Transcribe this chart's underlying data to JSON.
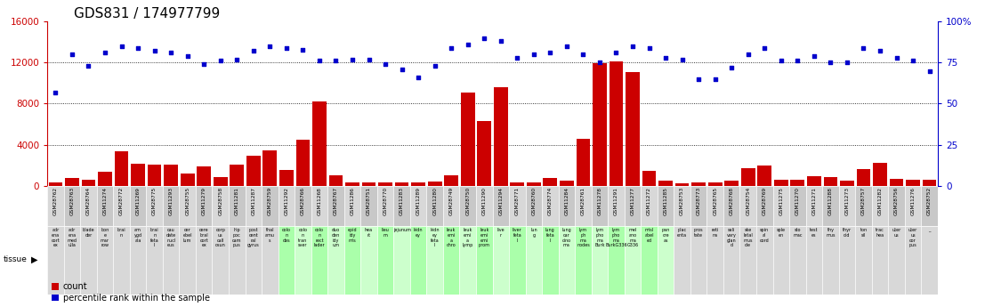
{
  "title": "GDS831 / 174977799",
  "samples": [
    "GSM28762",
    "GSM28763",
    "GSM28764",
    "GSM11274",
    "GSM28772",
    "GSM11269",
    "GSM28775",
    "GSM11293",
    "GSM28755",
    "GSM11279",
    "GSM28758",
    "GSM11281",
    "GSM11287",
    "GSM28759",
    "GSM11292",
    "GSM28766",
    "GSM11268",
    "GSM28767",
    "GSM11286",
    "GSM28751",
    "GSM28770",
    "GSM11283",
    "GSM11289",
    "GSM11280",
    "GSM28749",
    "GSM28750",
    "GSM11290",
    "GSM11294",
    "GSM28771",
    "GSM28760",
    "GSM28774",
    "GSM11284",
    "GSM28761",
    "GSM11278",
    "GSM11291",
    "GSM11277",
    "GSM11272",
    "GSM11285",
    "GSM28753",
    "GSM28773",
    "GSM28765",
    "GSM28768",
    "GSM28754",
    "GSM28769",
    "GSM11275",
    "GSM11270",
    "GSM11271",
    "GSM11288",
    "GSM11273",
    "GSM28757",
    "GSM11282",
    "GSM28756",
    "GSM11276",
    "GSM28752"
  ],
  "tissues": [
    "adr\nena\ncort\nex",
    "adr\nena\nmed\nulla",
    "blade\nder",
    "bon\ne\nmar\nrow",
    "brai\nn",
    "am\nygd\nala",
    "brai\nn\nfeta\nl",
    "cau\ndate\nnucl\neus",
    "cer\nebel\nlum",
    "cere\nbral\ncort\nex",
    "corp\nus\ncall\nosun",
    "hip\npoc\ncam\npus",
    "post\ncent\nral\ngyrus",
    "thal\namu\ns",
    "colo\nn\ndes",
    "colo\nn\ntran\nsver",
    "colo\nn\nrect\nlader",
    "duo\nden\nidy\num",
    "epid\nidy\nmis",
    "hea\nrt",
    "lieu\nm",
    "jejunum",
    "kidn\ney",
    "kidn\ney\nfeta\nl",
    "leuk\nemi\na\nchro",
    "leuk\nemi\na\nlymp",
    "leuk\nemi\nemi\nprom",
    "live\nr",
    "liver\nfeta\nl",
    "lun\ng",
    "lung\nfeta\nl",
    "lung\ncar\ncino\nma",
    "lym\nph\nma\nnodes",
    "lym\npho\nma\nBurk",
    "lym\npho\nma\nBurkG336",
    "mel\nano\nma\nG336",
    "misl\nabel\ned",
    "pan\ncre\nas",
    "plac\nenta",
    "pros\ntate",
    "reti\nna",
    "sali\nvary\nglan\nd",
    "ske\nletal\nmus\ncle",
    "spin\nal\ncord",
    "sple\nen",
    "sto\nmac",
    "test\nes",
    "thy\nmus",
    "thyr\noid",
    "ton\nsil",
    "trac\nhea",
    "uter\nus",
    "uter\nus\ncor\npus",
    "_"
  ],
  "tissue_bg": [
    0,
    0,
    0,
    0,
    0,
    0,
    0,
    0,
    0,
    0,
    0,
    0,
    0,
    0,
    1,
    1,
    1,
    1,
    1,
    1,
    1,
    1,
    1,
    1,
    1,
    1,
    1,
    1,
    1,
    1,
    1,
    1,
    1,
    1,
    1,
    1,
    1,
    1,
    0,
    0,
    0,
    0,
    0,
    0,
    0,
    0,
    0,
    0,
    0,
    0,
    0,
    0,
    0,
    0
  ],
  "counts": [
    310,
    730,
    570,
    1350,
    3350,
    2150,
    2050,
    2050,
    1150,
    1850,
    820,
    2050,
    2950,
    3450,
    1550,
    4500,
    8200,
    1050,
    280,
    280,
    280,
    280,
    280,
    430,
    980,
    9100,
    6300,
    9600,
    280,
    280,
    750,
    520,
    4550,
    11900,
    12100,
    11100,
    1450,
    500,
    250,
    350,
    350,
    530,
    1750,
    1950,
    580,
    580,
    950,
    800,
    480,
    1650,
    2250,
    700,
    580,
    580
  ],
  "percentiles": [
    57,
    80,
    73,
    81,
    85,
    84,
    82,
    81,
    79,
    74,
    76,
    77,
    82,
    85,
    84,
    83,
    76,
    76,
    77,
    77,
    74,
    71,
    66,
    73,
    84,
    86,
    90,
    88,
    78,
    80,
    81,
    85,
    80,
    75,
    81,
    85,
    84,
    78,
    77,
    65,
    65,
    72,
    80,
    84,
    76,
    76,
    79,
    75,
    75,
    84,
    82,
    78,
    76,
    70
  ],
  "ylim_left": [
    0,
    16000
  ],
  "ylim_right": [
    0,
    100
  ],
  "yticks_left": [
    0,
    4000,
    8000,
    12000,
    16000
  ],
  "yticks_right": [
    0,
    25,
    50,
    75,
    100
  ],
  "bar_color": "#cc0000",
  "dot_color": "#0000cc",
  "title_fontsize": 11,
  "axis_color_left": "#cc0000",
  "axis_color_right": "#0000cc",
  "legend_count_label": "count",
  "legend_pct_label": "percentile rank within the sample",
  "gsm_bg_even": "#d8d8d8",
  "gsm_bg_odd": "#c8c8c8",
  "tissue_bg_green_even": "#aaffaa",
  "tissue_bg_green_odd": "#ccffcc",
  "tissue_bg_gray": "#d8d8d8"
}
